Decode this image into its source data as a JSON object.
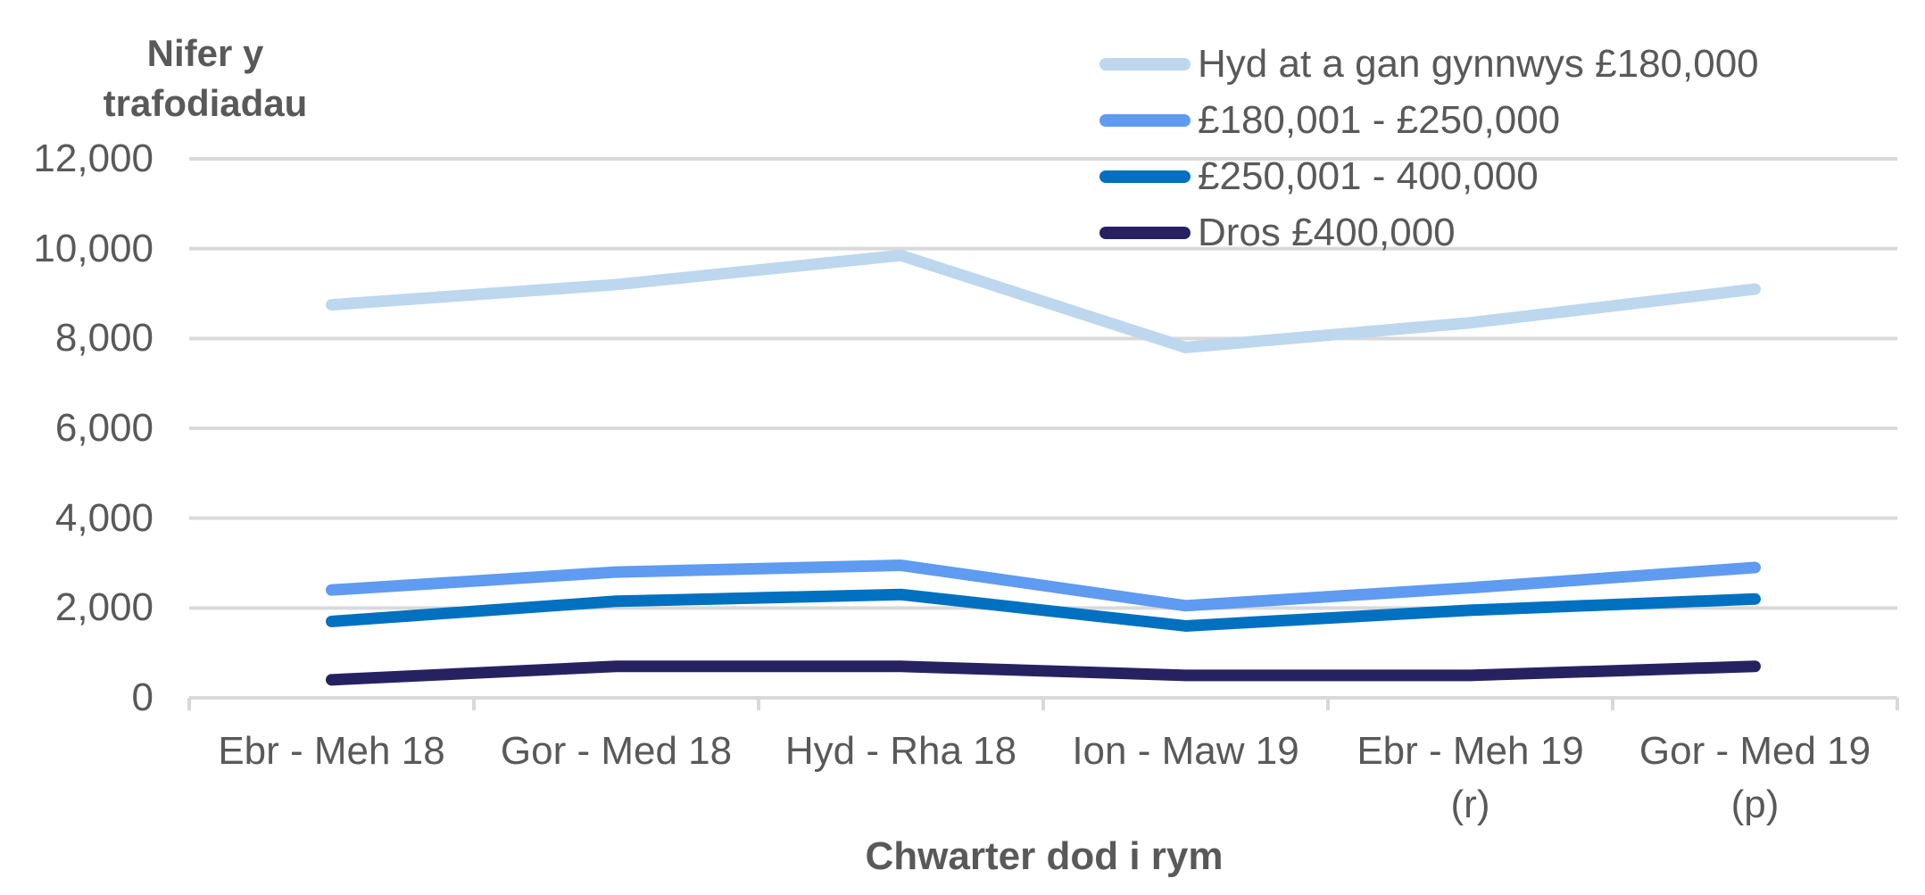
{
  "chart_data": {
    "type": "line",
    "title": "",
    "ylabel": "Nifer y trafodiadau",
    "ylabel_lines": [
      "Nifer y",
      "trafodiadau"
    ],
    "xlabel": "Chwarter dod i rym",
    "categories": [
      "Ebr - Meh 18",
      "Gor - Med 18",
      "Hyd - Rha 18",
      "Ion - Maw 19",
      "Ebr - Meh 19 (r)",
      "Gor - Med 19 (p)"
    ],
    "category_lines": [
      [
        "Ebr - Meh 18"
      ],
      [
        "Gor - Med 18"
      ],
      [
        "Hyd - Rha 18"
      ],
      [
        "Ion - Maw 19"
      ],
      [
        "Ebr - Meh 19",
        "(r)"
      ],
      [
        "Gor - Med 19",
        "(p)"
      ]
    ],
    "ylim": [
      0,
      12000
    ],
    "yticks": [
      0,
      2000,
      4000,
      6000,
      8000,
      10000,
      12000
    ],
    "ytick_labels": [
      "0",
      "2,000",
      "4,000",
      "6,000",
      "8,000",
      "10,000",
      "12,000"
    ],
    "grid": true,
    "legend_position": "top-right",
    "series": [
      {
        "name": "Hyd at a gan gynnwys £180,000",
        "color": "#BDD7EE",
        "values": [
          8750,
          9200,
          9850,
          7800,
          8350,
          9100
        ]
      },
      {
        "name": "£180,001 - £250,000",
        "color": "#5F9BF0",
        "values": [
          2400,
          2800,
          2950,
          2050,
          2450,
          2900
        ]
      },
      {
        "name": "£250,001 - 400,000",
        "color": "#0070C0",
        "values": [
          1700,
          2150,
          2300,
          1600,
          1950,
          2200
        ]
      },
      {
        "name": "Dros £400,000",
        "color": "#262262",
        "values": [
          400,
          700,
          700,
          500,
          500,
          700
        ]
      }
    ]
  },
  "colors": {
    "text": "#595959",
    "grid": "#D9D9D9"
  }
}
